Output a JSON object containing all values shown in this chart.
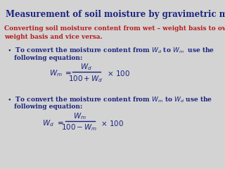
{
  "title": "Measurement of soil moisture by gravimetric method",
  "title_color": "#1a237e",
  "subtitle_line1": "Converting soil moisture content from wet – weight basis to oven dry-",
  "subtitle_line2": "weight basis and vice versa.",
  "subtitle_color": "#b71c1c",
  "body_color": "#1a237e",
  "bg_color": "#d3d3d3",
  "font_size_title": 8.5,
  "font_size_body": 6.5,
  "font_size_formula": 7.5
}
